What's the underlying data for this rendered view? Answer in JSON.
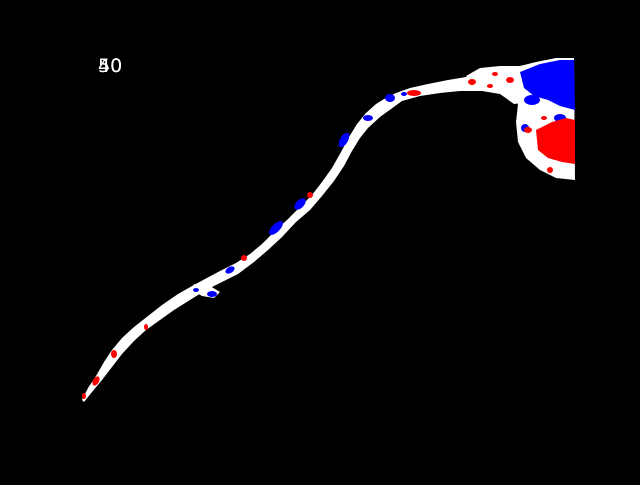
{
  "overlay": {
    "label_front": "40",
    "label_back": "50"
  },
  "colors": {
    "background": "#000000",
    "base": "#ffffff",
    "positive": "#ff0000",
    "negative": "#0000ff"
  }
}
